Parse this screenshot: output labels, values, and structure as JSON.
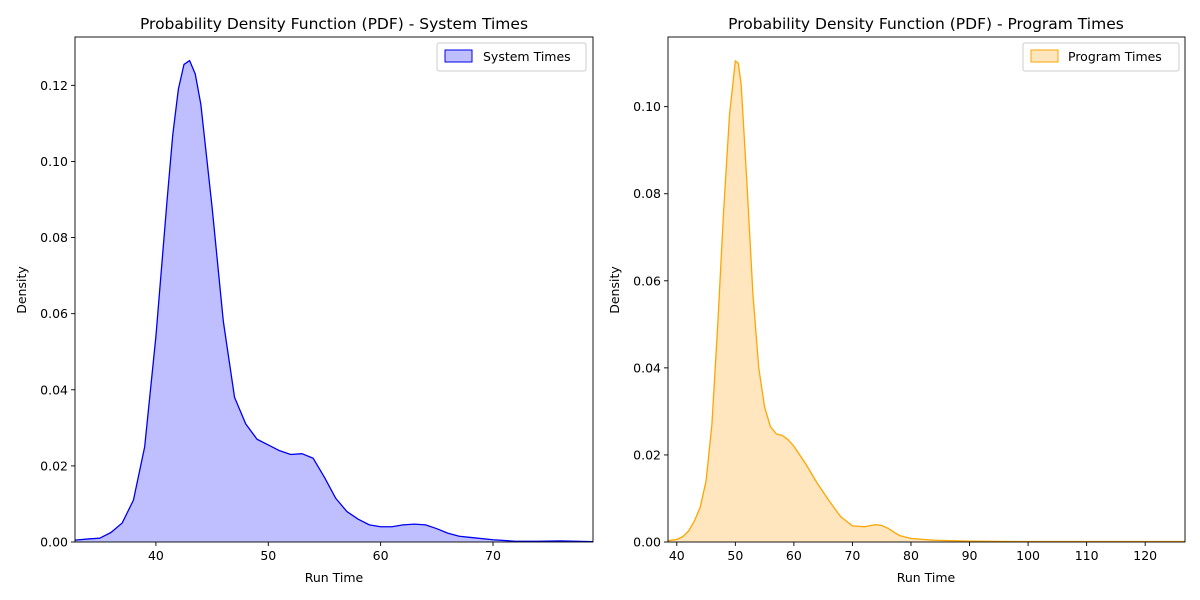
{
  "chart_data": [
    {
      "type": "area",
      "title": "Probability Density Function (PDF) - System Times",
      "xlabel": "Run Time",
      "ylabel": "Density",
      "xlim": [
        32.8,
        78.9
      ],
      "ylim": [
        0,
        0.1327
      ],
      "xticks": [
        40,
        50,
        60,
        70
      ],
      "yticks": [
        0.0,
        0.02,
        0.04,
        0.06,
        0.08,
        0.1,
        0.12
      ],
      "ytick_decimals": 2,
      "grid": false,
      "legend_position": "top-right",
      "series": [
        {
          "name": "System Times",
          "color": "#0000ee",
          "fill": "#bfbfff",
          "x": [
            32.8,
            34,
            35,
            36,
            37,
            38,
            39,
            40,
            41,
            41.5,
            42,
            42.5,
            43,
            43.5,
            44,
            45,
            46,
            47,
            48,
            49,
            50,
            51,
            52,
            53,
            54,
            55,
            56,
            57,
            58,
            59,
            60,
            61,
            62,
            63,
            64,
            65,
            66,
            67,
            68,
            70,
            72,
            74,
            76,
            78.9
          ],
          "y": [
            0.0005,
            0.0008,
            0.001,
            0.0025,
            0.005,
            0.011,
            0.025,
            0.054,
            0.09,
            0.107,
            0.119,
            0.1255,
            0.1265,
            0.123,
            0.115,
            0.088,
            0.058,
            0.038,
            0.031,
            0.027,
            0.0255,
            0.024,
            0.023,
            0.0232,
            0.022,
            0.017,
            0.0115,
            0.008,
            0.006,
            0.0045,
            0.004,
            0.004,
            0.0045,
            0.0047,
            0.0045,
            0.0035,
            0.0023,
            0.0015,
            0.0012,
            0.0006,
            0.0002,
            0.0002,
            0.0003,
            0.0001
          ]
        }
      ]
    },
    {
      "type": "area",
      "title": "Probability Density Function (PDF) - Program Times",
      "xlabel": "Run Time",
      "ylabel": "Density",
      "xlim": [
        38.5,
        126.8
      ],
      "ylim": [
        0,
        0.116
      ],
      "xticks": [
        40,
        50,
        60,
        70,
        80,
        90,
        100,
        110,
        120
      ],
      "yticks": [
        0.0,
        0.02,
        0.04,
        0.06,
        0.08,
        0.1
      ],
      "ytick_decimals": 2,
      "grid": false,
      "legend_position": "top-right",
      "series": [
        {
          "name": "Program Times",
          "color": "#ffa500",
          "fill": "#ffe6bf",
          "x": [
            38.5,
            40,
            41,
            42,
            43,
            44,
            45,
            46,
            47,
            48,
            49,
            50,
            50.5,
            51,
            52,
            53,
            54,
            55,
            56,
            57,
            58,
            59,
            60,
            62,
            64,
            66,
            68,
            70,
            72,
            74,
            75,
            76,
            78,
            80,
            84,
            90,
            100,
            110,
            120,
            126.8
          ],
          "y": [
            0.0003,
            0.0006,
            0.0012,
            0.0025,
            0.0048,
            0.008,
            0.014,
            0.027,
            0.05,
            0.076,
            0.098,
            0.1105,
            0.11,
            0.105,
            0.082,
            0.057,
            0.04,
            0.031,
            0.0265,
            0.0248,
            0.0245,
            0.0235,
            0.022,
            0.018,
            0.0135,
            0.0095,
            0.0058,
            0.0037,
            0.0035,
            0.004,
            0.0038,
            0.0032,
            0.0015,
            0.0008,
            0.0004,
            0.0002,
            0.0001,
            0.0001,
            0.0001,
            0.0001
          ]
        }
      ]
    }
  ]
}
